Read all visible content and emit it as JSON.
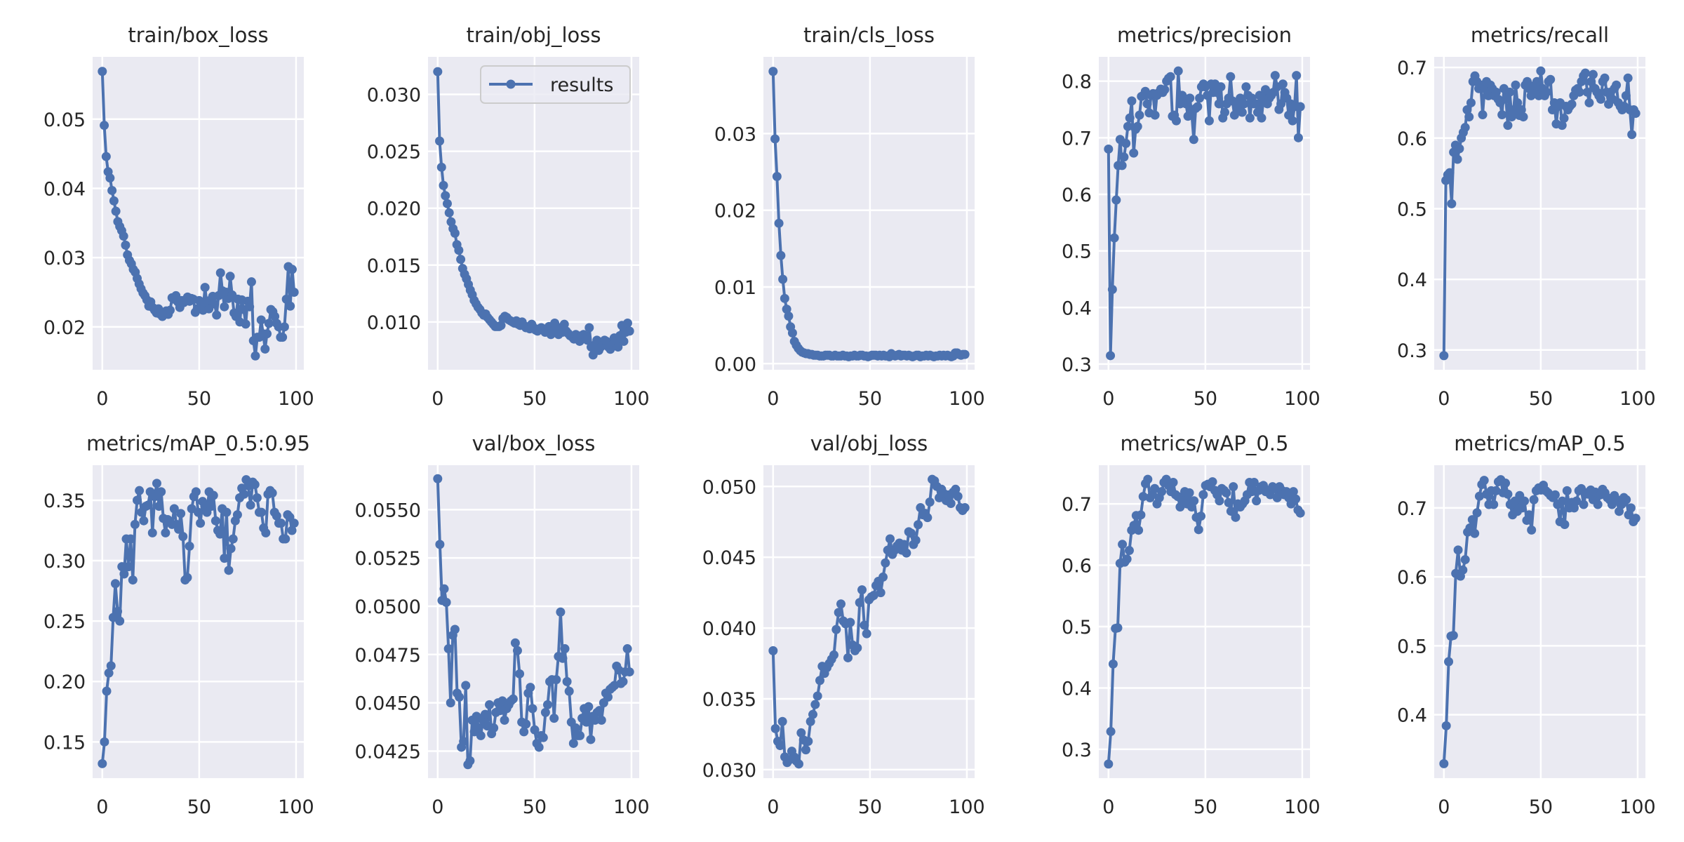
{
  "figure": {
    "series_color": "#4c72b0",
    "axes_bg": "#eaeaf2",
    "grid_color": "#ffffff",
    "text_color": "#262626"
  },
  "legend": {
    "label": "results",
    "placement": "upper-right of train/obj_loss"
  },
  "chart_data": [
    {
      "type": "line",
      "title": "train/box_loss",
      "xlim": [
        -5,
        104
      ],
      "ylim": [
        0.0138,
        0.059
      ],
      "xticks": [
        0,
        50,
        100
      ],
      "xtick_labels": [
        "0",
        "50",
        "100"
      ],
      "yticks": [
        0.02,
        0.03,
        0.04,
        0.05
      ],
      "ytick_labels": [
        "0.02",
        "0.03",
        "0.04",
        "0.05"
      ],
      "values": [
        0.0569,
        0.0491,
        0.0446,
        0.0424,
        0.0415,
        0.0397,
        0.0382,
        0.0367,
        0.0352,
        0.0345,
        0.0339,
        0.0331,
        0.0318,
        0.0304,
        0.0296,
        0.0291,
        0.0283,
        0.0279,
        0.027,
        0.0262,
        0.0255,
        0.0249,
        0.0245,
        0.0239,
        0.023,
        0.0236,
        0.0228,
        0.0224,
        0.022,
        0.0226,
        0.0218,
        0.0215,
        0.022,
        0.0223,
        0.0218,
        0.0224,
        0.0242,
        0.024,
        0.0245,
        0.0236,
        0.0228,
        0.0238,
        0.0235,
        0.0239,
        0.0243,
        0.0237,
        0.0241,
        0.024,
        0.0221,
        0.0226,
        0.0238,
        0.0234,
        0.0224,
        0.0257,
        0.0232,
        0.0226,
        0.0239,
        0.0244,
        0.0233,
        0.0217,
        0.0245,
        0.0278,
        0.0252,
        0.0229,
        0.025,
        0.0241,
        0.0273,
        0.0246,
        0.022,
        0.0215,
        0.024,
        0.0207,
        0.0239,
        0.0225,
        0.0204,
        0.0237,
        0.0229,
        0.0265,
        0.018,
        0.0158,
        0.0185,
        0.0185,
        0.021,
        0.019,
        0.0168,
        0.019,
        0.0205,
        0.0225,
        0.0222,
        0.0215,
        0.0205,
        0.02,
        0.0185,
        0.0185,
        0.02,
        0.024,
        0.0287,
        0.023,
        0.0283,
        0.025
      ]
    },
    {
      "type": "line",
      "title": "train/obj_loss",
      "xlim": [
        -5,
        104
      ],
      "ylim": [
        0.0058,
        0.0333
      ],
      "xticks": [
        0,
        50,
        100
      ],
      "xtick_labels": [
        "0",
        "50",
        "100"
      ],
      "yticks": [
        0.01,
        0.015,
        0.02,
        0.025,
        0.03
      ],
      "ytick_labels": [
        "0.010",
        "0.015",
        "0.020",
        "0.025",
        "0.030"
      ],
      "values": [
        0.032,
        0.0259,
        0.0236,
        0.022,
        0.0211,
        0.0204,
        0.0196,
        0.0188,
        0.0182,
        0.0178,
        0.0168,
        0.0163,
        0.0155,
        0.0147,
        0.0142,
        0.0138,
        0.0133,
        0.0128,
        0.0124,
        0.0119,
        0.0116,
        0.0113,
        0.0111,
        0.0108,
        0.0106,
        0.0107,
        0.0104,
        0.0102,
        0.01,
        0.0098,
        0.0096,
        0.0096,
        0.0096,
        0.0097,
        0.0103,
        0.0105,
        0.0104,
        0.0102,
        0.0101,
        0.01,
        0.0099,
        0.0101,
        0.0098,
        0.0097,
        0.01,
        0.0097,
        0.0095,
        0.0095,
        0.0094,
        0.0098,
        0.0095,
        0.0093,
        0.0092,
        0.0094,
        0.0095,
        0.0093,
        0.0091,
        0.0094,
        0.0096,
        0.0089,
        0.0092,
        0.0099,
        0.0092,
        0.0089,
        0.0095,
        0.0091,
        0.0098,
        0.0092,
        0.009,
        0.0088,
        0.0087,
        0.0085,
        0.0089,
        0.0086,
        0.0083,
        0.0088,
        0.0089,
        0.0087,
        0.0084,
        0.0095,
        0.0078,
        0.0071,
        0.008,
        0.0084,
        0.0075,
        0.0078,
        0.008,
        0.0084,
        0.0083,
        0.0078,
        0.0076,
        0.008,
        0.0086,
        0.0081,
        0.0078,
        0.0088,
        0.0097,
        0.0083,
        0.0091,
        0.0099,
        0.0092
      ]
    },
    {
      "type": "line",
      "title": "train/cls_loss",
      "xlim": [
        -5,
        104
      ],
      "ylim": [
        -0.0008,
        0.04
      ],
      "xticks": [
        0,
        50,
        100
      ],
      "xtick_labels": [
        "0",
        "50",
        "100"
      ],
      "yticks": [
        0.0,
        0.01,
        0.02,
        0.03
      ],
      "ytick_labels": [
        "0.00",
        "0.01",
        "0.02",
        "0.03"
      ],
      "values": [
        0.0381,
        0.0293,
        0.0244,
        0.0183,
        0.0141,
        0.011,
        0.0085,
        0.0071,
        0.0062,
        0.0048,
        0.004,
        0.0029,
        0.0024,
        0.002,
        0.0017,
        0.0015,
        0.0014,
        0.0013,
        0.0013,
        0.0012,
        0.0012,
        0.0011,
        0.0011,
        0.0011,
        0.001,
        0.001,
        0.001,
        0.0011,
        0.0011,
        0.0011,
        0.001,
        0.001,
        0.0011,
        0.001,
        0.001,
        0.001,
        0.0011,
        0.001,
        0.001,
        0.0009,
        0.001,
        0.001,
        0.0011,
        0.001,
        0.001,
        0.0011,
        0.0011,
        0.001,
        0.001,
        0.0009,
        0.001,
        0.0011,
        0.0011,
        0.0011,
        0.001,
        0.0011,
        0.001,
        0.0011,
        0.001,
        0.001,
        0.0009,
        0.0013,
        0.0011,
        0.001,
        0.0011,
        0.0012,
        0.001,
        0.0011,
        0.0011,
        0.001,
        0.0011,
        0.001,
        0.0009,
        0.001,
        0.0011,
        0.0011,
        0.0009,
        0.001,
        0.001,
        0.0011,
        0.001,
        0.0011,
        0.001,
        0.0009,
        0.001,
        0.001,
        0.0011,
        0.001,
        0.0011,
        0.001,
        0.0011,
        0.001,
        0.0009,
        0.001,
        0.0014,
        0.0014,
        0.0012,
        0.0011,
        0.0012,
        0.0012
      ]
    },
    {
      "type": "line",
      "title": "metrics/precision",
      "xlim": [
        -5,
        104
      ],
      "ylim": [
        0.29,
        0.843
      ],
      "xticks": [
        0,
        50,
        100
      ],
      "xtick_labels": [
        "0",
        "50",
        "100"
      ],
      "yticks": [
        0.3,
        0.4,
        0.5,
        0.6,
        0.7,
        0.8
      ],
      "ytick_labels": [
        "0.3",
        "0.4",
        "0.5",
        "0.6",
        "0.7",
        "0.8"
      ],
      "values": [
        0.68,
        0.315,
        0.432,
        0.523,
        0.59,
        0.651,
        0.697,
        0.651,
        0.666,
        0.69,
        0.72,
        0.735,
        0.765,
        0.673,
        0.715,
        0.72,
        0.74,
        0.773,
        0.775,
        0.782,
        0.76,
        0.744,
        0.775,
        0.778,
        0.74,
        0.775,
        0.78,
        0.786,
        0.78,
        0.785,
        0.8,
        0.805,
        0.808,
        0.738,
        0.74,
        0.73,
        0.818,
        0.76,
        0.775,
        0.77,
        0.76,
        0.738,
        0.77,
        0.74,
        0.697,
        0.752,
        0.755,
        0.77,
        0.79,
        0.795,
        0.79,
        0.775,
        0.73,
        0.795,
        0.78,
        0.795,
        0.78,
        0.76,
        0.79,
        0.735,
        0.745,
        0.76,
        0.77,
        0.808,
        0.765,
        0.74,
        0.76,
        0.75,
        0.77,
        0.745,
        0.76,
        0.79,
        0.775,
        0.735,
        0.77,
        0.76,
        0.76,
        0.745,
        0.775,
        0.735,
        0.77,
        0.785,
        0.76,
        0.77,
        0.775,
        0.78,
        0.81,
        0.79,
        0.75,
        0.76,
        0.795,
        0.78,
        0.77,
        0.74,
        0.76,
        0.73,
        0.755,
        0.81,
        0.7,
        0.755
      ]
    },
    {
      "type": "line",
      "title": "metrics/recall",
      "xlim": [
        -5,
        104
      ],
      "ylim": [
        0.272,
        0.715
      ],
      "xticks": [
        0,
        50,
        100
      ],
      "xtick_labels": [
        "0",
        "50",
        "100"
      ],
      "yticks": [
        0.3,
        0.4,
        0.5,
        0.6,
        0.7
      ],
      "ytick_labels": [
        "0.3",
        "0.4",
        "0.5",
        "0.6",
        "0.7"
      ],
      "values": [
        0.292,
        0.54,
        0.548,
        0.551,
        0.507,
        0.58,
        0.59,
        0.57,
        0.585,
        0.6,
        0.608,
        0.615,
        0.64,
        0.63,
        0.65,
        0.68,
        0.688,
        0.68,
        0.67,
        0.675,
        0.633,
        0.67,
        0.68,
        0.66,
        0.675,
        0.67,
        0.66,
        0.665,
        0.655,
        0.65,
        0.633,
        0.67,
        0.655,
        0.618,
        0.665,
        0.63,
        0.64,
        0.675,
        0.65,
        0.632,
        0.64,
        0.63,
        0.675,
        0.68,
        0.67,
        0.66,
        0.665,
        0.675,
        0.68,
        0.66,
        0.695,
        0.67,
        0.66,
        0.665,
        0.68,
        0.683,
        0.64,
        0.65,
        0.62,
        0.645,
        0.65,
        0.618,
        0.628,
        0.645,
        0.64,
        0.645,
        0.648,
        0.66,
        0.668,
        0.67,
        0.665,
        0.68,
        0.688,
        0.692,
        0.665,
        0.65,
        0.68,
        0.69,
        0.67,
        0.665,
        0.66,
        0.655,
        0.68,
        0.685,
        0.665,
        0.648,
        0.665,
        0.655,
        0.67,
        0.675,
        0.65,
        0.645,
        0.64,
        0.645,
        0.66,
        0.685,
        0.64,
        0.605,
        0.64,
        0.635
      ]
    },
    {
      "type": "line",
      "title": "metrics/mAP_0.5:0.95",
      "xlim": [
        -5,
        104
      ],
      "ylim": [
        0.12,
        0.379
      ],
      "xticks": [
        0,
        50,
        100
      ],
      "xtick_labels": [
        "0",
        "50",
        "100"
      ],
      "yticks": [
        0.15,
        0.2,
        0.25,
        0.3,
        0.35
      ],
      "ytick_labels": [
        "0.15",
        "0.20",
        "0.25",
        "0.30",
        "0.35"
      ],
      "values": [
        0.132,
        0.15,
        0.192,
        0.207,
        0.213,
        0.253,
        0.281,
        0.258,
        0.25,
        0.295,
        0.289,
        0.318,
        0.295,
        0.318,
        0.284,
        0.33,
        0.35,
        0.358,
        0.34,
        0.333,
        0.345,
        0.346,
        0.357,
        0.323,
        0.353,
        0.364,
        0.345,
        0.357,
        0.335,
        0.323,
        0.334,
        0.332,
        0.33,
        0.343,
        0.33,
        0.326,
        0.339,
        0.32,
        0.284,
        0.286,
        0.312,
        0.343,
        0.353,
        0.357,
        0.34,
        0.331,
        0.349,
        0.345,
        0.34,
        0.357,
        0.345,
        0.354,
        0.333,
        0.325,
        0.322,
        0.343,
        0.302,
        0.34,
        0.292,
        0.31,
        0.318,
        0.333,
        0.338,
        0.352,
        0.36,
        0.355,
        0.367,
        0.362,
        0.346,
        0.365,
        0.363,
        0.352,
        0.34,
        0.34,
        0.327,
        0.323,
        0.355,
        0.358,
        0.356,
        0.34,
        0.337,
        0.331,
        0.331,
        0.318,
        0.318,
        0.338,
        0.336,
        0.325,
        0.331
      ]
    },
    {
      "type": "line",
      "title": "val/box_loss",
      "xlim": [
        -5,
        104
      ],
      "ylim": [
        0.0411,
        0.0573
      ],
      "xticks": [
        0,
        50,
        100
      ],
      "xtick_labels": [
        "0",
        "50",
        "100"
      ],
      "yticks": [
        0.0425,
        0.045,
        0.0475,
        0.05,
        0.0525,
        0.055
      ],
      "ytick_labels": [
        "0.0425",
        "0.0450",
        "0.0475",
        "0.0500",
        "0.0525",
        "0.0550"
      ],
      "values": [
        0.0566,
        0.0532,
        0.0503,
        0.0509,
        0.0502,
        0.0478,
        0.045,
        0.0485,
        0.0488,
        0.0455,
        0.0453,
        0.0427,
        0.043,
        0.0459,
        0.0418,
        0.042,
        0.0441,
        0.0435,
        0.0443,
        0.0437,
        0.0433,
        0.0441,
        0.0444,
        0.0438,
        0.0449,
        0.0434,
        0.0437,
        0.0445,
        0.045,
        0.0446,
        0.0451,
        0.0441,
        0.0447,
        0.0449,
        0.0451,
        0.0452,
        0.0481,
        0.0477,
        0.0465,
        0.044,
        0.0435,
        0.0439,
        0.0455,
        0.0458,
        0.0447,
        0.0436,
        0.0429,
        0.0427,
        0.0433,
        0.0432,
        0.0445,
        0.0449,
        0.0461,
        0.0462,
        0.0442,
        0.0462,
        0.0474,
        0.0497,
        0.0473,
        0.0478,
        0.0461,
        0.0456,
        0.044,
        0.0429,
        0.0437,
        0.0433,
        0.0433,
        0.0442,
        0.0447,
        0.044,
        0.0448,
        0.0431,
        0.0443,
        0.0441,
        0.0445,
        0.0446,
        0.0441,
        0.045,
        0.0455,
        0.0453,
        0.0457,
        0.0458,
        0.0459,
        0.0469,
        0.0467,
        0.046,
        0.0461,
        0.0466,
        0.0478,
        0.0466
      ]
    },
    {
      "type": "line",
      "title": "val/obj_loss",
      "xlim": [
        -5,
        104
      ],
      "ylim": [
        0.0294,
        0.0515
      ],
      "xticks": [
        0,
        50,
        100
      ],
      "xtick_labels": [
        "0",
        "50",
        "100"
      ],
      "yticks": [
        0.03,
        0.035,
        0.04,
        0.045,
        0.05
      ],
      "ytick_labels": [
        "0.030",
        "0.035",
        "0.040",
        "0.045",
        "0.050"
      ],
      "values": [
        0.0384,
        0.0329,
        0.032,
        0.0317,
        0.0334,
        0.0309,
        0.0305,
        0.0307,
        0.0313,
        0.0309,
        0.0306,
        0.0304,
        0.0326,
        0.0321,
        0.0314,
        0.032,
        0.0334,
        0.0339,
        0.0346,
        0.0352,
        0.0363,
        0.0373,
        0.0368,
        0.0372,
        0.0375,
        0.0378,
        0.0381,
        0.0399,
        0.0411,
        0.0417,
        0.0405,
        0.0403,
        0.0379,
        0.0404,
        0.0388,
        0.0384,
        0.0386,
        0.0418,
        0.0427,
        0.0402,
        0.0396,
        0.042,
        0.0422,
        0.0423,
        0.043,
        0.0433,
        0.0425,
        0.0436,
        0.0446,
        0.0455,
        0.0463,
        0.0452,
        0.0455,
        0.0458,
        0.046,
        0.0455,
        0.0459,
        0.0453,
        0.0468,
        0.0467,
        0.0459,
        0.0462,
        0.0473,
        0.0485,
        0.048,
        0.0481,
        0.0478,
        0.0489,
        0.0505,
        0.0504,
        0.05,
        0.0492,
        0.0498,
        0.0495,
        0.049,
        0.0494,
        0.0488,
        0.0496,
        0.0498,
        0.0493,
        0.0485,
        0.0483,
        0.0485
      ]
    },
    {
      "type": "line",
      "title": "metrics/wAP_0.5",
      "xlim": [
        -5,
        104
      ],
      "ylim": [
        0.253,
        0.763
      ],
      "xticks": [
        0,
        50,
        100
      ],
      "xtick_labels": [
        "0",
        "50",
        "100"
      ],
      "yticks": [
        0.3,
        0.4,
        0.5,
        0.6,
        0.7
      ],
      "ytick_labels": [
        "0.3",
        "0.4",
        "0.5",
        "0.6",
        "0.7"
      ],
      "values": [
        0.276,
        0.329,
        0.439,
        0.497,
        0.498,
        0.603,
        0.634,
        0.605,
        0.61,
        0.624,
        0.657,
        0.665,
        0.681,
        0.657,
        0.682,
        0.712,
        0.733,
        0.74,
        0.71,
        0.715,
        0.725,
        0.7,
        0.71,
        0.72,
        0.735,
        0.74,
        0.73,
        0.72,
        0.735,
        0.715,
        0.712,
        0.695,
        0.705,
        0.72,
        0.7,
        0.718,
        0.695,
        0.705,
        0.678,
        0.658,
        0.68,
        0.715,
        0.73,
        0.732,
        0.728,
        0.736,
        0.722,
        0.715,
        0.705,
        0.725,
        0.722,
        0.718,
        0.702,
        0.688,
        0.728,
        0.678,
        0.7,
        0.695,
        0.7,
        0.705,
        0.715,
        0.735,
        0.72,
        0.735,
        0.705,
        0.722,
        0.728,
        0.73,
        0.72,
        0.722,
        0.715,
        0.728,
        0.725,
        0.71,
        0.728,
        0.722,
        0.715,
        0.72,
        0.71,
        0.7,
        0.72,
        0.708,
        0.69,
        0.685
      ]
    },
    {
      "type": "line",
      "title": "metrics/mAP_0.5",
      "xlim": [
        -5,
        104
      ],
      "ylim": [
        0.308,
        0.762
      ],
      "xticks": [
        0,
        50,
        100
      ],
      "xtick_labels": [
        "0",
        "50",
        "100"
      ],
      "yticks": [
        0.4,
        0.5,
        0.6,
        0.7
      ],
      "ytick_labels": [
        "0.4",
        "0.5",
        "0.6",
        "0.7"
      ],
      "values": [
        0.329,
        0.384,
        0.477,
        0.514,
        0.515,
        0.605,
        0.639,
        0.601,
        0.61,
        0.625,
        0.665,
        0.671,
        0.683,
        0.663,
        0.693,
        0.717,
        0.734,
        0.74,
        0.72,
        0.705,
        0.725,
        0.705,
        0.725,
        0.738,
        0.741,
        0.722,
        0.736,
        0.72,
        0.705,
        0.69,
        0.71,
        0.695,
        0.718,
        0.7,
        0.71,
        0.682,
        0.69,
        0.668,
        0.712,
        0.725,
        0.729,
        0.726,
        0.733,
        0.725,
        0.722,
        0.718,
        0.715,
        0.719,
        0.705,
        0.68,
        0.71,
        0.676,
        0.725,
        0.7,
        0.708,
        0.7,
        0.71,
        0.725,
        0.728,
        0.705,
        0.722,
        0.72,
        0.726,
        0.712,
        0.723,
        0.705,
        0.719,
        0.727,
        0.722,
        0.715,
        0.712,
        0.705,
        0.718,
        0.712,
        0.695,
        0.705,
        0.715,
        0.712,
        0.69,
        0.7,
        0.68,
        0.685
      ]
    }
  ]
}
